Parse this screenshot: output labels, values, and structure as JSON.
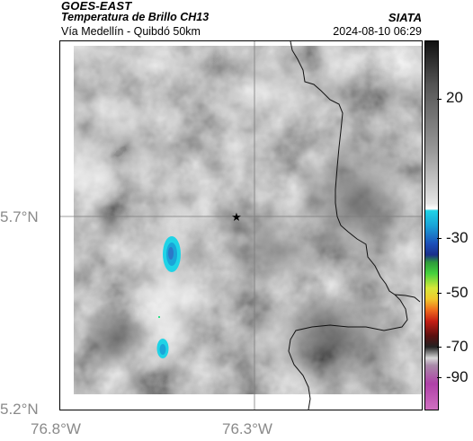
{
  "header": {
    "satellite": "GOES-EAST",
    "product": "Temperatura de Brillo CH13",
    "route": "Vía Medellín - Quibdó 50km",
    "organization": "SIATA",
    "datetime": "2024-08-10 06:29"
  },
  "axes": {
    "lat_labels": [
      "5.7°N",
      "5.2°N"
    ],
    "lon_labels": [
      "76.8°W",
      "76.3°W"
    ]
  },
  "colorbar": {
    "labels": [
      "20",
      "-30",
      "-50",
      "-70",
      "-90"
    ]
  },
  "map": {
    "marker": "star-marker",
    "boundary": "department-boundary"
  }
}
